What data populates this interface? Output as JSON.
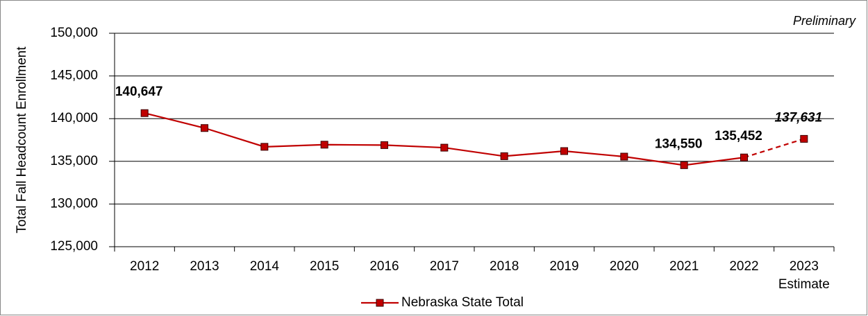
{
  "chart_data": {
    "type": "line",
    "y_axis_label": "Total Fall Headcount Enrollment",
    "annotation": "Preliminary",
    "categories": [
      "2012",
      "2013",
      "2014",
      "2015",
      "2016",
      "2017",
      "2018",
      "2019",
      "2020",
      "2021",
      "2022",
      "2023"
    ],
    "category_notes": [
      null,
      null,
      null,
      null,
      null,
      null,
      null,
      null,
      null,
      null,
      null,
      "Estimate"
    ],
    "series": [
      {
        "name": "Nebraska State Total",
        "color": "#c00000",
        "values": [
          140647,
          138900,
          136700,
          136950,
          136900,
          136600,
          135600,
          136200,
          135550,
          134550,
          135452,
          137631
        ],
        "value_labels": [
          "140,647",
          null,
          null,
          null,
          null,
          null,
          null,
          null,
          null,
          "134,550",
          "135,452",
          "137,631"
        ],
        "estimated": [
          false,
          false,
          false,
          false,
          false,
          false,
          false,
          false,
          false,
          false,
          false,
          true
        ]
      }
    ],
    "ylim": [
      125000,
      150000
    ],
    "yticks": [
      {
        "value": 125000,
        "label": "125,000"
      },
      {
        "value": 130000,
        "label": "130,000"
      },
      {
        "value": 135000,
        "label": "135,000"
      },
      {
        "value": 140000,
        "label": "140,000"
      },
      {
        "value": 145000,
        "label": "145,000"
      },
      {
        "value": 150000,
        "label": "150,000"
      }
    ],
    "grid": true,
    "legend": "bottom"
  }
}
